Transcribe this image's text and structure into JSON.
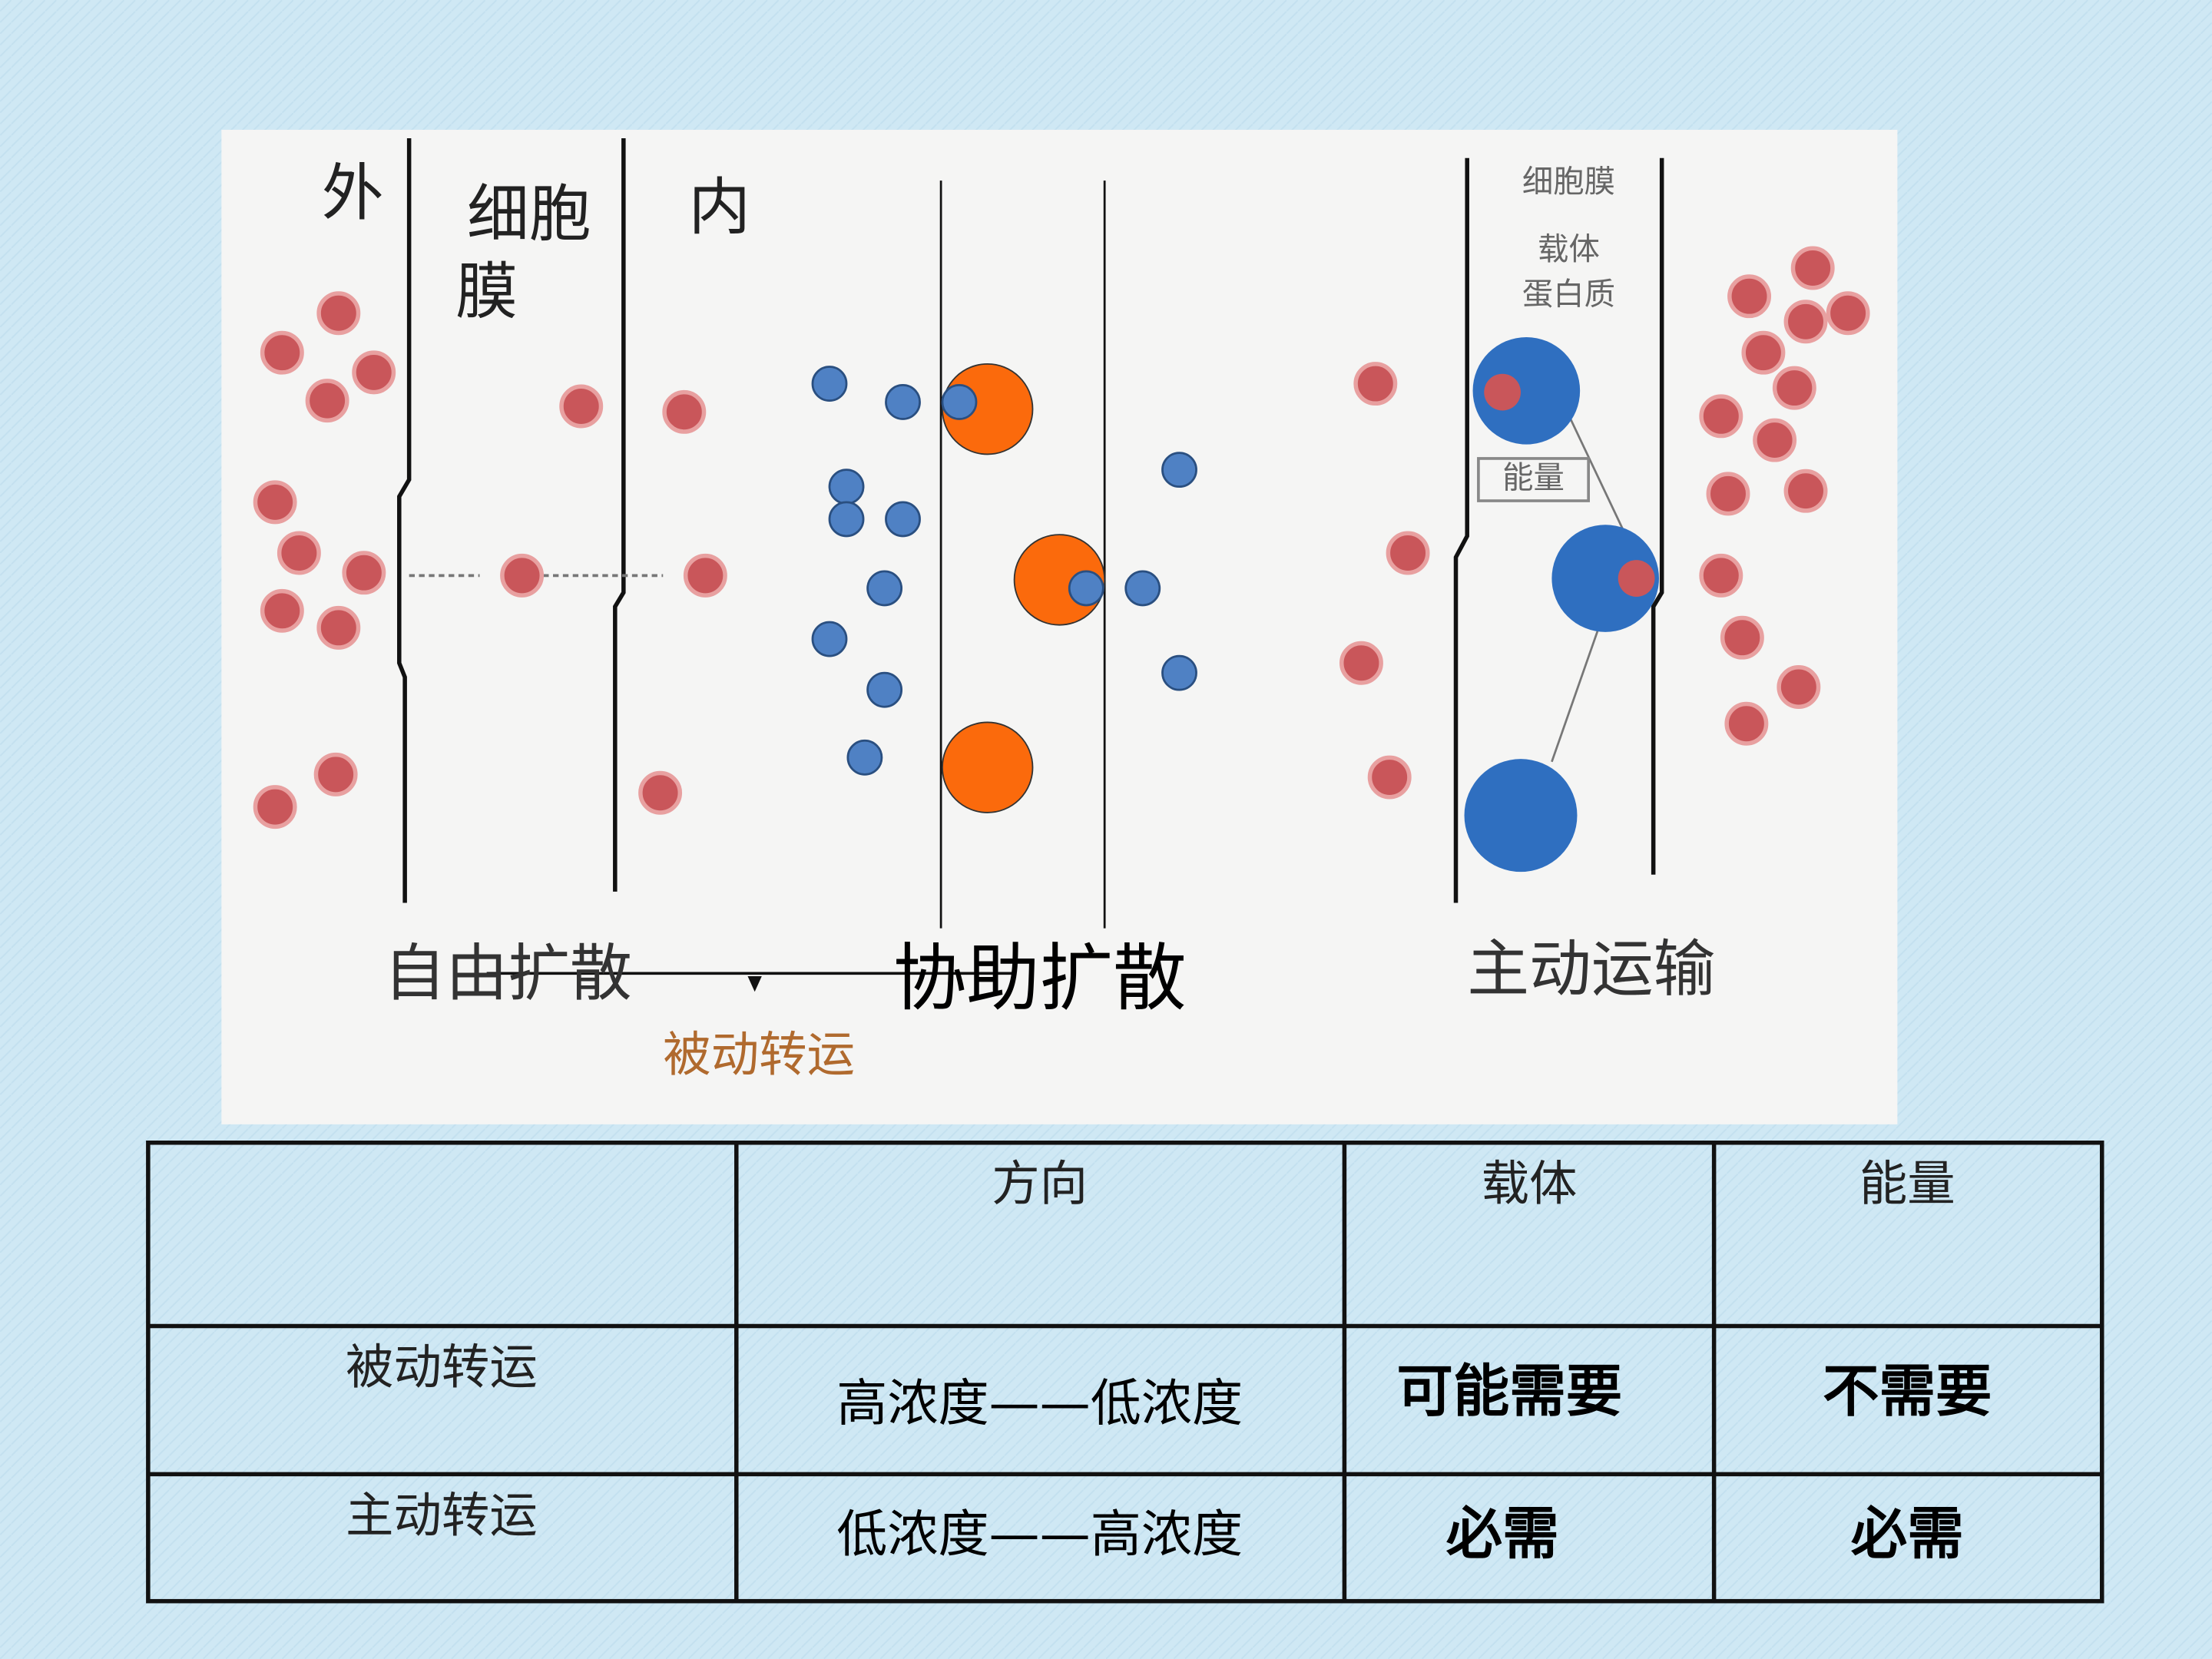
{
  "diagram": {
    "outside": "外",
    "membrane_line1": "细胞",
    "membrane_line2": "膜",
    "inside": "内",
    "free_diffusion": "自由扩散",
    "facilitated_diffusion": "协助扩散",
    "active_transport": "主动运输",
    "passive_transport": "被动转运",
    "membrane_small": "细胞膜",
    "carrier": "载体",
    "protein": "蛋白质",
    "energy": "能量"
  },
  "table": {
    "header": [
      "方向",
      "载体",
      "能量"
    ],
    "rows": [
      {
        "label": "被动转运",
        "cells": [
          "高浓度——低浓度",
          "可能需要",
          "不需要"
        ]
      },
      {
        "label": "主动转运",
        "cells": [
          "低浓度——高浓度",
          "必需",
          "必需"
        ]
      }
    ]
  }
}
